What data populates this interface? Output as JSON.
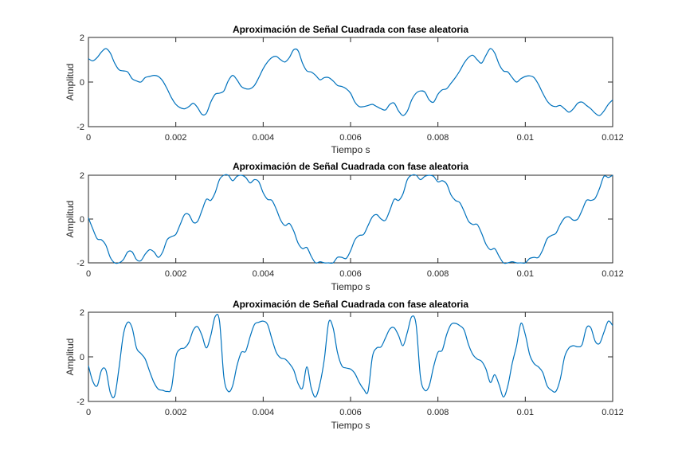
{
  "figure": {
    "background": "#ffffff",
    "line_color": "#0072bd",
    "axis_color": "#262626"
  },
  "chart_data": [
    {
      "type": "line",
      "title": "Aproximación de Señal Cuadrada con fase aleatoria",
      "xlabel": "Tiempo s",
      "ylabel": "Amplitud",
      "xlim": [
        0,
        0.012
      ],
      "ylim": [
        -2,
        2
      ],
      "x_ticks": [
        "0",
        "0.002",
        "0.004",
        "0.006",
        "0.008",
        "0.01",
        "0.012"
      ],
      "y_ticks": [
        "-2",
        "0",
        "2"
      ],
      "grid": false,
      "x": [
        0,
        0.0001,
        0.0002,
        0.0003,
        0.0004,
        0.0005,
        0.0006,
        0.0007,
        0.0008,
        0.0009,
        0.001,
        0.0011,
        0.0012,
        0.0013,
        0.0014,
        0.0015,
        0.0016,
        0.0017,
        0.0018,
        0.0019,
        0.002,
        0.0021,
        0.0022,
        0.0023,
        0.0024,
        0.0025,
        0.0026,
        0.0027,
        0.0028,
        0.0029,
        0.003,
        0.0031,
        0.0032,
        0.0033,
        0.0034,
        0.0035,
        0.0036,
        0.0037,
        0.0038,
        0.0039,
        0.004,
        0.0041,
        0.0042,
        0.0043,
        0.0044,
        0.0045,
        0.0046,
        0.0047,
        0.0048,
        0.0049,
        0.005,
        0.0051,
        0.0052,
        0.0053,
        0.0054,
        0.0055,
        0.0056,
        0.0057,
        0.0058,
        0.0059,
        0.006,
        0.0061,
        0.0062,
        0.0063,
        0.0064,
        0.0065,
        0.0066,
        0.0067,
        0.0068,
        0.0069,
        0.007,
        0.0071,
        0.0072,
        0.0073,
        0.0074,
        0.0075,
        0.0076,
        0.0077,
        0.0078,
        0.0079,
        0.008,
        0.0081,
        0.0082,
        0.0083,
        0.0084,
        0.0085,
        0.0086,
        0.0087,
        0.0088,
        0.0089,
        0.009,
        0.0091,
        0.0092,
        0.0093,
        0.0094,
        0.0095,
        0.0096,
        0.0097,
        0.0098,
        0.0099,
        0.01,
        0.0101,
        0.0102,
        0.0103,
        0.0104,
        0.0105,
        0.0106,
        0.0107,
        0.0108,
        0.0109,
        0.011,
        0.0111,
        0.0112,
        0.0113,
        0.0114,
        0.0115,
        0.0116,
        0.0117,
        0.0118,
        0.0119,
        0.012
      ],
      "y": [
        1.05,
        0.95,
        1.1,
        1.35,
        1.5,
        1.3,
        0.85,
        0.55,
        0.5,
        0.45,
        0.15,
        0.05,
        0,
        0.2,
        0.25,
        0.3,
        0.25,
        0.05,
        -0.3,
        -0.7,
        -1.0,
        -1.15,
        -1.2,
        -1.1,
        -0.95,
        -1.15,
        -1.45,
        -1.4,
        -0.9,
        -0.55,
        -0.5,
        -0.4,
        0.05,
        0.3,
        0.1,
        -0.2,
        -0.3,
        -0.3,
        -0.15,
        0.2,
        0.6,
        0.9,
        1.1,
        1.15,
        1.0,
        0.9,
        1.1,
        1.45,
        1.4,
        0.85,
        0.5,
        0.45,
        0.3,
        0.1,
        0.2,
        0.2,
        0.05,
        -0.15,
        -0.2,
        -0.3,
        -0.5,
        -0.9,
        -1.1,
        -1.1,
        -1.05,
        -1.0,
        -1.1,
        -1.2,
        -1.25,
        -1.0,
        -0.95,
        -1.3,
        -1.5,
        -1.3,
        -0.8,
        -0.5,
        -0.4,
        -0.45,
        -0.8,
        -0.9,
        -0.55,
        -0.35,
        -0.3,
        -0.05,
        0.2,
        0.5,
        0.85,
        1.1,
        1.2,
        1.0,
        0.85,
        1.2,
        1.5,
        1.3,
        0.8,
        0.5,
        0.45,
        0.2,
        0,
        0.15,
        0.25,
        0.28,
        0.2,
        -0.1,
        -0.5,
        -0.85,
        -1.05,
        -1.1,
        -1.05,
        -1.2,
        -1.35,
        -1.2,
        -0.95,
        -0.9,
        -1.05,
        -1.2,
        -1.4,
        -1.5,
        -1.3,
        -1.0,
        -0.8
      ]
    },
    {
      "type": "line",
      "title": "Aproximación de Señal Cuadrada con fase aleatoria",
      "xlabel": "Tiempo s",
      "ylabel": "Amplitud",
      "xlim": [
        0,
        0.012
      ],
      "ylim": [
        -2,
        2
      ],
      "x_ticks": [
        "0",
        "0.002",
        "0.004",
        "0.006",
        "0.008",
        "0.01",
        "0.012"
      ],
      "y_ticks": [
        "-2",
        "0",
        "2"
      ],
      "grid": false,
      "x": [
        0,
        0.0001,
        0.0002,
        0.0003,
        0.0004,
        0.0005,
        0.0006,
        0.0007,
        0.0008,
        0.0009,
        0.001,
        0.0011,
        0.0012,
        0.0013,
        0.0014,
        0.0015,
        0.0016,
        0.0017,
        0.0018,
        0.0019,
        0.002,
        0.0021,
        0.0022,
        0.0023,
        0.0024,
        0.0025,
        0.0026,
        0.0027,
        0.0028,
        0.0029,
        0.003,
        0.0031,
        0.0032,
        0.0033,
        0.0034,
        0.0035,
        0.0036,
        0.0037,
        0.0038,
        0.0039,
        0.004,
        0.0041,
        0.0042,
        0.0043,
        0.0044,
        0.0045,
        0.0046,
        0.0047,
        0.0048,
        0.0049,
        0.005,
        0.0051,
        0.0052,
        0.0053,
        0.0054,
        0.0055,
        0.0056,
        0.0057,
        0.0058,
        0.0059,
        0.006,
        0.0061,
        0.0062,
        0.0063,
        0.0064,
        0.0065,
        0.0066,
        0.0067,
        0.0068,
        0.0069,
        0.007,
        0.0071,
        0.0072,
        0.0073,
        0.0074,
        0.0075,
        0.0076,
        0.0077,
        0.0078,
        0.0079,
        0.008,
        0.0081,
        0.0082,
        0.0083,
        0.0084,
        0.0085,
        0.0086,
        0.0087,
        0.0088,
        0.0089,
        0.009,
        0.0091,
        0.0092,
        0.0093,
        0.0094,
        0.0095,
        0.0096,
        0.0097,
        0.0098,
        0.0099,
        0.01,
        0.0101,
        0.0102,
        0.0103,
        0.0104,
        0.0105,
        0.0106,
        0.0107,
        0.0108,
        0.0109,
        0.011,
        0.0111,
        0.0112,
        0.0113,
        0.0114,
        0.0115,
        0.0116,
        0.0117,
        0.0118,
        0.0119,
        0.012
      ],
      "y": [
        0.05,
        -0.45,
        -0.9,
        -0.95,
        -1.2,
        -1.75,
        -2.05,
        -2.0,
        -1.85,
        -1.5,
        -1.5,
        -1.85,
        -1.9,
        -1.6,
        -1.4,
        -1.5,
        -1.75,
        -1.5,
        -0.95,
        -0.8,
        -0.7,
        -0.25,
        0.2,
        0.2,
        -0.15,
        -0.1,
        0.4,
        0.9,
        0.85,
        1.2,
        1.8,
        2.2,
        2.1,
        1.75,
        1.95,
        2.15,
        1.9,
        1.65,
        1.8,
        1.7,
        1.2,
        0.9,
        0.85,
        0.45,
        -0.05,
        -0.3,
        -0.2,
        -0.55,
        -1.1,
        -1.35,
        -1.3,
        -1.7,
        -2.0,
        -1.95,
        -2.05,
        -2.2,
        -2.0,
        -1.75,
        -1.75,
        -1.8,
        -1.45,
        -0.95,
        -0.75,
        -0.7,
        -0.3,
        0.1,
        0.2,
        0.0,
        -0.05,
        0.4,
        0.9,
        0.85,
        1.15,
        1.8,
        2.2,
        2.05,
        1.8,
        1.95,
        2.15,
        1.95,
        1.7,
        1.75,
        1.6,
        1.1,
        0.85,
        0.75,
        0.35,
        -0.1,
        -0.25,
        -0.25,
        -0.65,
        -1.15,
        -1.4,
        -1.35,
        -1.7,
        -2.05,
        -2.1,
        -1.95,
        -2.1,
        -2.15,
        -2.0,
        -1.8,
        -1.75,
        -1.75,
        -1.4,
        -0.9,
        -0.75,
        -0.65,
        -0.25,
        0.05,
        0.1,
        -0.05,
        0.0,
        0.4,
        0.85,
        0.85,
        0.95,
        1.4,
        1.95,
        1.9,
        2.05
      ]
    },
    {
      "type": "line",
      "title": "Aproximación de Señal Cuadrada con fase aleatoria",
      "xlabel": "Tiempo s",
      "ylabel": "Amplitud",
      "xlim": [
        0,
        0.012
      ],
      "ylim": [
        -2,
        2
      ],
      "x_ticks": [
        "0",
        "0.002",
        "0.004",
        "0.006",
        "0.008",
        "0.01",
        "0.012"
      ],
      "y_ticks": [
        "-2",
        "0",
        "2"
      ],
      "grid": false,
      "x": [
        0,
        0.0001,
        0.0002,
        0.0003,
        0.0004,
        0.0005,
        0.0006,
        0.0007,
        0.0008,
        0.0009,
        0.001,
        0.0011,
        0.0012,
        0.0013,
        0.0014,
        0.0015,
        0.0016,
        0.0017,
        0.0018,
        0.0019,
        0.002,
        0.0021,
        0.0022,
        0.0023,
        0.0024,
        0.0025,
        0.0026,
        0.0027,
        0.0028,
        0.0029,
        0.003,
        0.0031,
        0.0032,
        0.0033,
        0.0034,
        0.0035,
        0.0036,
        0.0037,
        0.0038,
        0.0039,
        0.004,
        0.0041,
        0.0042,
        0.0043,
        0.0044,
        0.0045,
        0.0046,
        0.0047,
        0.0048,
        0.0049,
        0.005,
        0.0051,
        0.0052,
        0.0053,
        0.0054,
        0.0055,
        0.0056,
        0.0057,
        0.0058,
        0.0059,
        0.006,
        0.0061,
        0.0062,
        0.0063,
        0.0064,
        0.0065,
        0.0066,
        0.0067,
        0.0068,
        0.0069,
        0.007,
        0.0071,
        0.0072,
        0.0073,
        0.0074,
        0.0075,
        0.0076,
        0.0077,
        0.0078,
        0.0079,
        0.008,
        0.0081,
        0.0082,
        0.0083,
        0.0084,
        0.0085,
        0.0086,
        0.0087,
        0.0088,
        0.0089,
        0.009,
        0.0091,
        0.0092,
        0.0093,
        0.0094,
        0.0095,
        0.0096,
        0.0097,
        0.0098,
        0.0099,
        0.01,
        0.0101,
        0.0102,
        0.0103,
        0.0104,
        0.0105,
        0.0106,
        0.0107,
        0.0108,
        0.0109,
        0.011,
        0.0111,
        0.0112,
        0.0113,
        0.0114,
        0.0115,
        0.0116,
        0.0117,
        0.0118,
        0.0119,
        0.012
      ],
      "y": [
        -0.4,
        -1.1,
        -1.3,
        -0.6,
        -0.6,
        -1.6,
        -1.75,
        -0.5,
        1.0,
        1.55,
        1.3,
        0.4,
        0.15,
        -0.1,
        -0.65,
        -1.15,
        -1.45,
        -1.5,
        -1.55,
        -1.4,
        0.0,
        0.35,
        0.4,
        0.65,
        1.2,
        1.35,
        0.95,
        0.4,
        0.95,
        1.8,
        1.6,
        -0.9,
        -1.55,
        -1.3,
        -0.4,
        0.2,
        0.25,
        0.9,
        1.45,
        1.55,
        1.6,
        1.45,
        0.8,
        0.2,
        -0.05,
        -0.1,
        -0.3,
        -0.6,
        -1.2,
        -1.4,
        -0.45,
        -1.4,
        -1.8,
        -1.2,
        -0.1,
        1.55,
        1.3,
        0.2,
        -0.4,
        -0.5,
        -0.55,
        -0.75,
        -1.15,
        -1.45,
        -1.55,
        0.0,
        0.4,
        0.45,
        0.85,
        1.25,
        1.3,
        0.95,
        0.5,
        1.1,
        1.8,
        1.45,
        -0.9,
        -1.5,
        -1.3,
        -0.45,
        0.2,
        0.3,
        1.0,
        1.45,
        1.5,
        1.4,
        1.2,
        0.55,
        0.1,
        -0.1,
        -0.2,
        -0.55,
        -1.15,
        -0.8,
        -1.25,
        -1.8,
        -1.3,
        -0.3,
        0.5,
        1.5,
        1.0,
        0.1,
        -0.3,
        -0.45,
        -0.7,
        -1.3,
        -1.5,
        -1.55,
        -1.0,
        0.0,
        0.4,
        0.5,
        0.45,
        0.55,
        1.3,
        1.3,
        0.7,
        0.6,
        1.1,
        1.6,
        1.4
      ]
    }
  ]
}
